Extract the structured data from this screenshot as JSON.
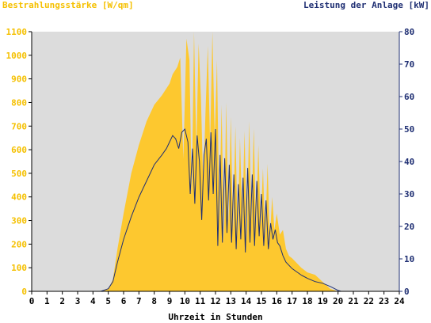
{
  "chart_data": {
    "type": "area",
    "ylabel_left": "Bestrahlungsstärke [W/qm]",
    "ylabel_right": "Leistung der Anlage [kW]",
    "xlabel": "Uhrzeit in Stunden",
    "xlim": [
      0,
      24
    ],
    "ylim_left": [
      0,
      1100
    ],
    "ylim_right": [
      0,
      80
    ],
    "x_ticks": [
      "0",
      "1",
      "2",
      "3",
      "4",
      "5",
      "6",
      "7",
      "8",
      "9",
      "10",
      "11",
      "12",
      "13",
      "14",
      "15",
      "16",
      "17",
      "18",
      "19",
      "20",
      "21",
      "22",
      "23",
      "24"
    ],
    "y_left_ticks": [
      "0",
      "100",
      "200",
      "300",
      "400",
      "500",
      "600",
      "700",
      "800",
      "900",
      "1000",
      "1100"
    ],
    "y_right_ticks": [
      "0",
      "10",
      "20",
      "30",
      "40",
      "50",
      "60",
      "70",
      "80"
    ],
    "grid": false,
    "colors": {
      "irradiance_fill": "#fdc82f",
      "power_line": "#1f2f73",
      "plot_background": "#dcdcdc",
      "left_axis_text": "#f5c000",
      "right_axis_text": "#1f2f73"
    },
    "series": [
      {
        "axis": "left",
        "kind": "area",
        "x": [
          0,
          4.6,
          5.0,
          5.3,
          5.6,
          6.0,
          6.5,
          7.0,
          7.5,
          8.0,
          8.5,
          8.8,
          9.0,
          9.2,
          9.5,
          9.7,
          9.9,
          10.1,
          10.3,
          10.45,
          10.6,
          10.75,
          10.9,
          11.05,
          11.2,
          11.35,
          11.5,
          11.65,
          11.8,
          11.95,
          12.1,
          12.25,
          12.4,
          12.55,
          12.7,
          12.85,
          13.0,
          13.15,
          13.3,
          13.45,
          13.6,
          13.75,
          13.9,
          14.05,
          14.2,
          14.35,
          14.5,
          14.65,
          14.8,
          14.95,
          15.1,
          15.25,
          15.4,
          15.55,
          15.7,
          15.85,
          16.0,
          16.2,
          16.4,
          16.6,
          16.8,
          17.0,
          17.3,
          17.6,
          18.0,
          18.5,
          19.0,
          19.5,
          20.0,
          20.3,
          24
        ],
        "y": [
          0,
          0,
          10,
          50,
          180,
          330,
          500,
          620,
          720,
          790,
          830,
          860,
          880,
          920,
          950,
          990,
          560,
          1070,
          980,
          400,
          1100,
          600,
          1050,
          820,
          450,
          760,
          1040,
          620,
          1100,
          650,
          980,
          300,
          790,
          200,
          800,
          280,
          740,
          250,
          700,
          230,
          650,
          300,
          680,
          210,
          720,
          300,
          690,
          260,
          620,
          280,
          520,
          230,
          540,
          220,
          400,
          260,
          330,
          240,
          260,
          180,
          150,
          140,
          120,
          100,
          80,
          70,
          40,
          10,
          0,
          0,
          0
        ]
      },
      {
        "axis": "right",
        "kind": "line",
        "x": [
          0,
          4.5,
          5.0,
          5.3,
          5.6,
          6.0,
          6.5,
          7.0,
          7.5,
          8.0,
          8.5,
          8.8,
          9.0,
          9.2,
          9.4,
          9.6,
          9.8,
          10.0,
          10.2,
          10.35,
          10.5,
          10.65,
          10.8,
          10.95,
          11.1,
          11.25,
          11.4,
          11.55,
          11.7,
          11.85,
          12.0,
          12.15,
          12.3,
          12.45,
          12.6,
          12.75,
          12.9,
          13.05,
          13.2,
          13.35,
          13.5,
          13.65,
          13.8,
          13.95,
          14.1,
          14.25,
          14.4,
          14.55,
          14.7,
          14.85,
          15.0,
          15.15,
          15.3,
          15.45,
          15.6,
          15.75,
          15.9,
          16.05,
          16.2,
          16.4,
          16.6,
          16.8,
          17.0,
          17.3,
          17.6,
          18.0,
          18.5,
          19.0,
          19.5,
          20.0,
          20.2,
          24
        ],
        "y": [
          0,
          0,
          0.8,
          3,
          9,
          16,
          23,
          29,
          34,
          39,
          42,
          44,
          46,
          48,
          47,
          44,
          49,
          50,
          46,
          30,
          44,
          27,
          48,
          40,
          22,
          42,
          47,
          28,
          49,
          30,
          50,
          14,
          42,
          15,
          41,
          18,
          39,
          15,
          36,
          13,
          33,
          16,
          35,
          12,
          38,
          15,
          36,
          14,
          34,
          17,
          30,
          14,
          28,
          13,
          21,
          16,
          19,
          15,
          14,
          11,
          9,
          8,
          7,
          6,
          5,
          4,
          3,
          2.5,
          1.5,
          0.3,
          0,
          0
        ]
      }
    ]
  }
}
